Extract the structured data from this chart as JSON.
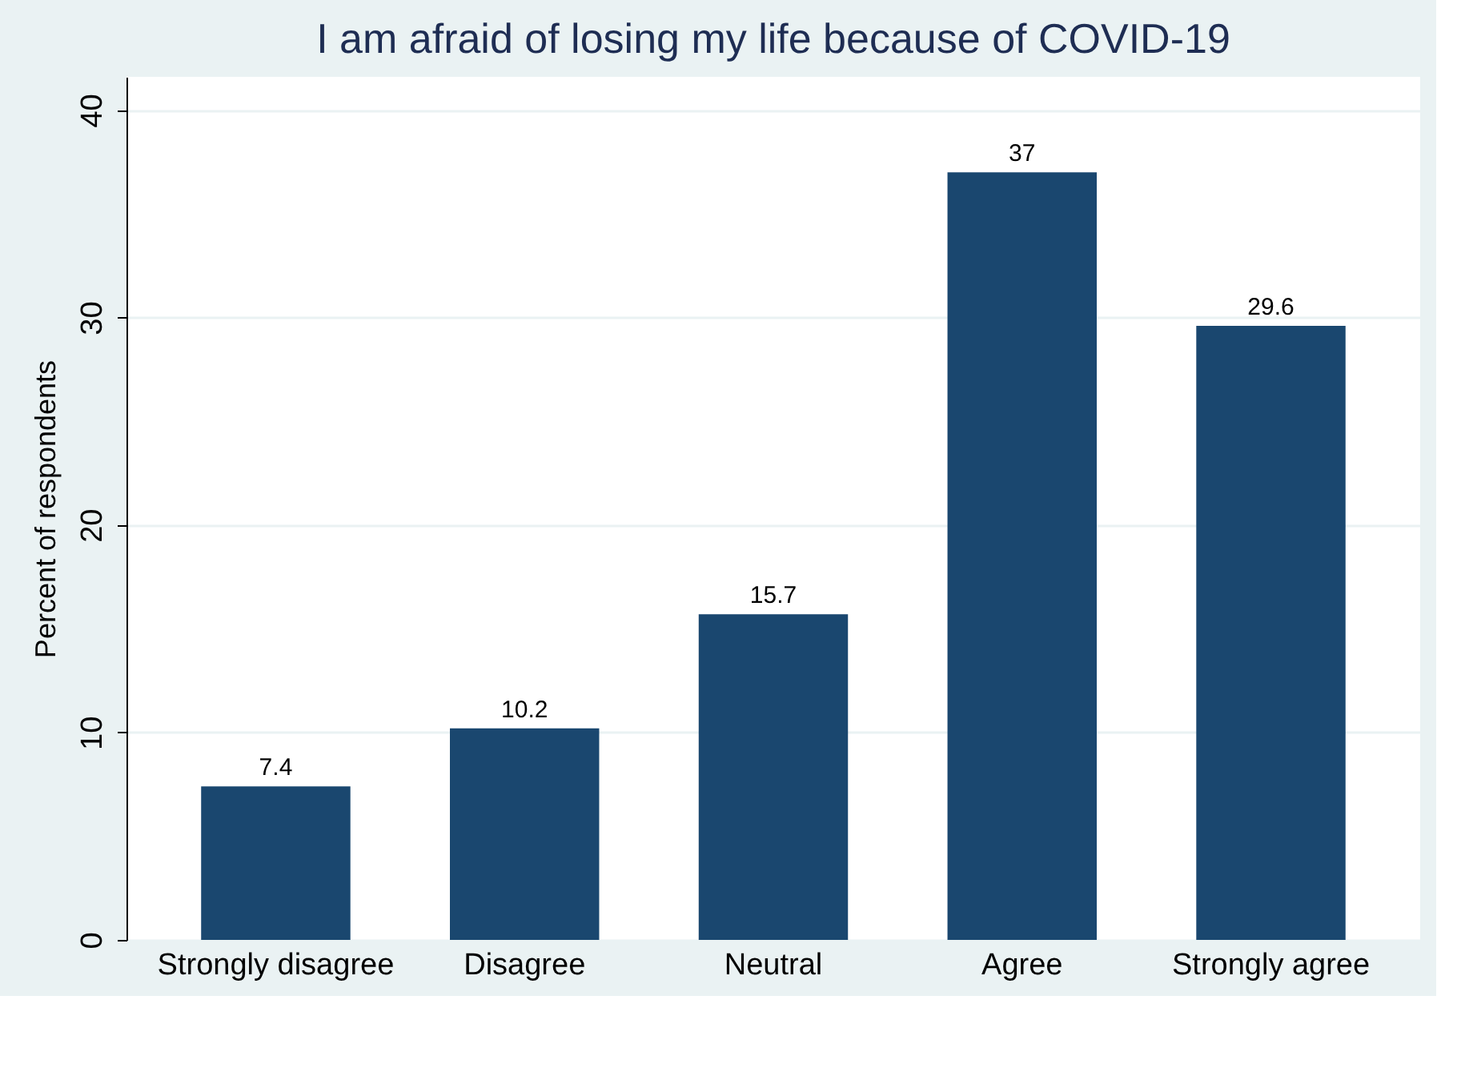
{
  "chart_data": {
    "type": "bar",
    "title": "I am afraid of losing my life because of COVID-19",
    "ylabel": "Percent of respondents",
    "categories": [
      "Strongly disagree",
      "Disagree",
      "Neutral",
      "Agree",
      "Strongly agree"
    ],
    "values": [
      7.4,
      10.2,
      15.7,
      37,
      29.6
    ],
    "color": "#1a476f",
    "ylim": [
      0,
      41.6
    ],
    "yticks": [
      0,
      10,
      20,
      30,
      40
    ],
    "grid": "y",
    "data_labels": true
  }
}
